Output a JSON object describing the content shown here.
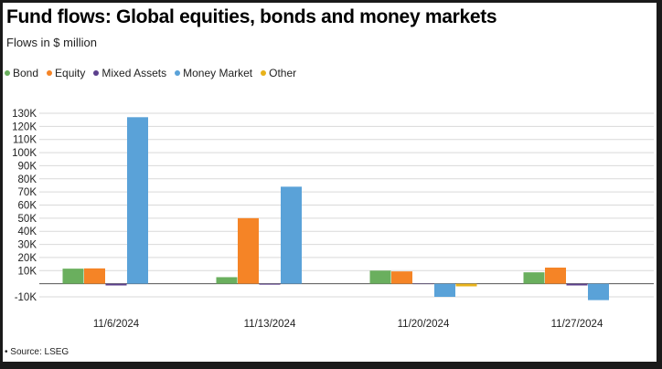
{
  "title": "Fund flows: Global equities, bonds and money markets",
  "subtitle": "Flows in $ million",
  "source": "• Source: LSEG",
  "chart_data": {
    "type": "bar",
    "categories": [
      "11/6/2024",
      "11/13/2024",
      "11/20/2024",
      "11/27/2024"
    ],
    "series": [
      {
        "name": "Bond",
        "color": "#6aaf5e",
        "values": [
          11500,
          5000,
          10000,
          8700
        ]
      },
      {
        "name": "Equity",
        "color": "#f58426",
        "values": [
          11700,
          50000,
          9400,
          12300
        ]
      },
      {
        "name": "Mixed Assets",
        "color": "#5b3f8c",
        "values": [
          -1300,
          -700,
          -300,
          -1300
        ]
      },
      {
        "name": "Money Market",
        "color": "#5aa2d8",
        "values": [
          127000,
          74000,
          -10000,
          -12500
        ]
      },
      {
        "name": "Other",
        "color": "#e8b21a",
        "values": [
          0,
          0,
          -2000,
          0
        ]
      }
    ],
    "yticks": [
      "-10K",
      "",
      "10K",
      "20K",
      "30K",
      "40K",
      "50K",
      "60K",
      "70K",
      "80K",
      "90K",
      "100K",
      "110K",
      "120K",
      "130K"
    ],
    "ylim": [
      -10000,
      130000
    ],
    "legend_position": "top-left",
    "grid": true
  }
}
